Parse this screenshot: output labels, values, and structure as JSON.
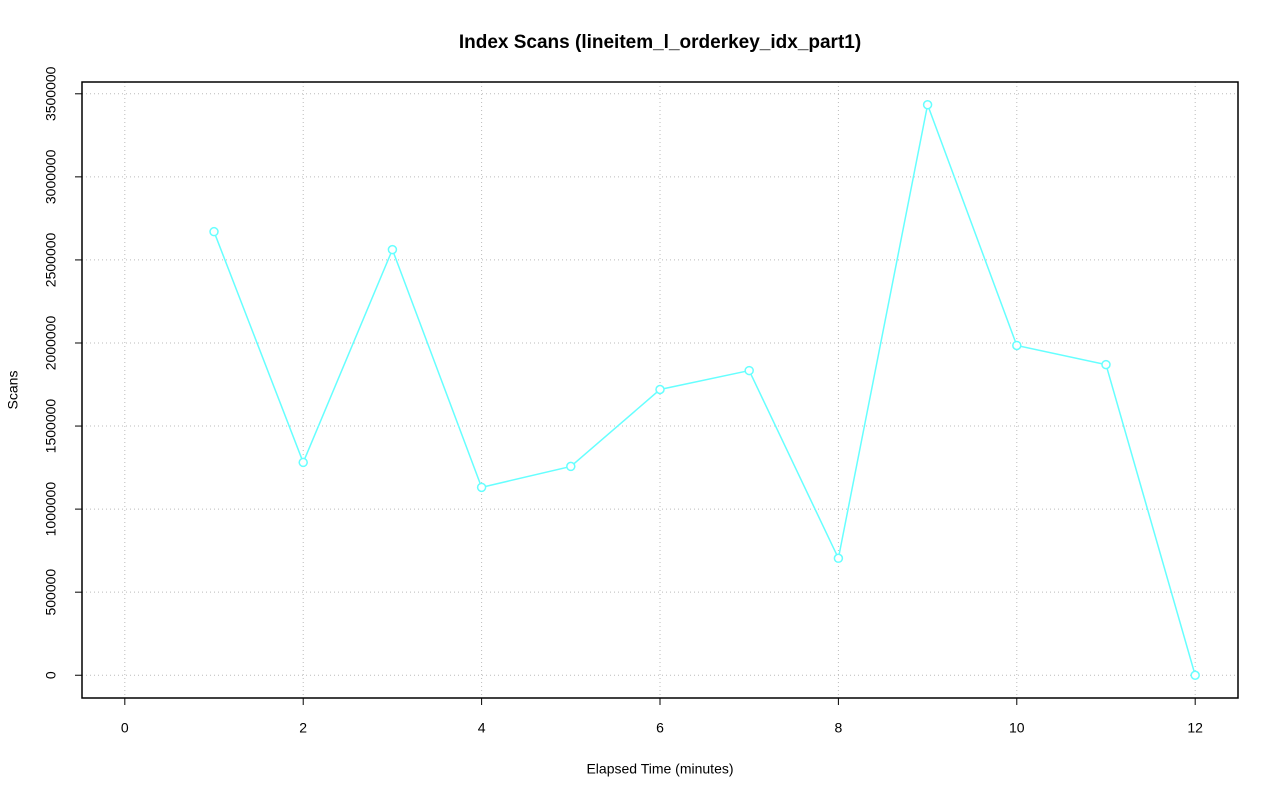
{
  "chart_data": {
    "type": "line",
    "title": "Index Scans (lineitem_l_orderkey_idx_part1)",
    "x_label": "Elapsed Time (minutes)",
    "y_label": "Scans",
    "x": [
      1,
      2,
      3,
      4,
      5,
      6,
      7,
      8,
      9,
      10,
      11,
      12
    ],
    "series": [
      {
        "name": "Scans",
        "color": "#66ffff",
        "values": [
          2670000,
          1281000,
          2562000,
          1131000,
          1257000,
          1720000,
          1834000,
          704000,
          3434000,
          1985000,
          1870000,
          0
        ]
      }
    ],
    "xlim": [
      -0.48,
      12.48
    ],
    "xticks": [
      0,
      2,
      4,
      6,
      8,
      10,
      12
    ],
    "ylim": [
      -137000,
      3571000
    ],
    "yticks": [
      0,
      500000,
      1000000,
      1500000,
      2000000,
      2500000,
      3000000,
      3500000
    ],
    "grid": true
  }
}
